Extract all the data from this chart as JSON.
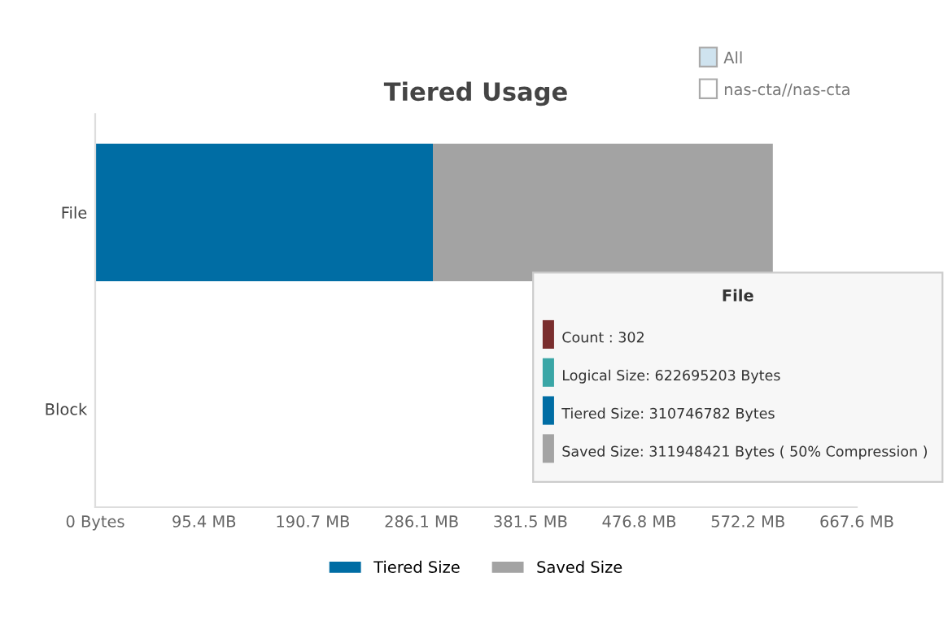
{
  "chart_data": {
    "type": "bar",
    "title": "Tiered Usage",
    "orientation": "horizontal",
    "stacked": true,
    "categories": [
      "File",
      "Block"
    ],
    "series": [
      {
        "name": "Tiered Size",
        "color": "#006da4",
        "values": [
          296,
          0
        ]
      },
      {
        "name": "Saved Size",
        "color": "#a3a3a3",
        "values": [
          298,
          0
        ]
      }
    ],
    "xlim": [
      0,
      667.6
    ],
    "xticks": [
      {
        "value": 0,
        "label": "0 Bytes"
      },
      {
        "value": 95.4,
        "label": "95.4 MB"
      },
      {
        "value": 190.7,
        "label": "190.7 MB"
      },
      {
        "value": 286.1,
        "label": "286.1 MB"
      },
      {
        "value": 381.5,
        "label": "381.5 MB"
      },
      {
        "value": 476.8,
        "label": "476.8 MB"
      },
      {
        "value": 572.2,
        "label": "572.2 MB"
      },
      {
        "value": 667.6,
        "label": "667.6 MB"
      }
    ],
    "legend": "bottom",
    "grid": false,
    "annotations": [
      "All",
      "nas-cta//nas-cta",
      "File",
      "Count : 302",
      "Logical Size: 622695203 Bytes",
      "Tiered Size: 310746782 Bytes",
      "Saved Size: 311948421 Bytes ( 50% Compression )"
    ]
  }
}
